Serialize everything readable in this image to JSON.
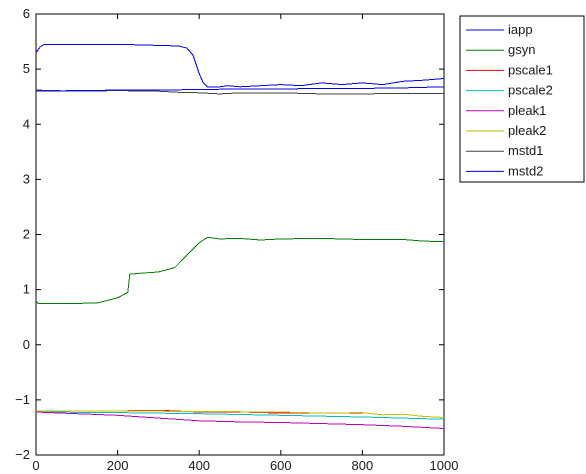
{
  "chart_data": {
    "type": "line",
    "title": "",
    "xlabel": "",
    "ylabel": "",
    "xlim": [
      0,
      1000
    ],
    "ylim": [
      -2,
      6
    ],
    "xticks": [
      0,
      200,
      400,
      600,
      800,
      1000
    ],
    "yticks": [
      -2,
      -1,
      0,
      1,
      2,
      3,
      4,
      5,
      6
    ],
    "xtick_labels": [
      "0",
      "200",
      "400",
      "600",
      "800",
      "1000"
    ],
    "ytick_labels": [
      "−2",
      "−1",
      "0",
      "1",
      "2",
      "3",
      "4",
      "5",
      "6"
    ],
    "grid": false,
    "legend_position": "top-right",
    "series": [
      {
        "name": "iapp",
        "color": "#0000ff",
        "x": [
          0,
          10,
          20,
          100,
          200,
          300,
          350,
          370,
          385,
          392,
          400,
          410,
          420,
          450,
          470,
          500,
          550,
          600,
          650,
          700,
          750,
          800,
          850,
          900,
          950,
          1000
        ],
        "y": [
          5.3,
          5.4,
          5.45,
          5.45,
          5.45,
          5.43,
          5.42,
          5.38,
          5.25,
          5.1,
          4.92,
          4.75,
          4.68,
          4.68,
          4.7,
          4.68,
          4.7,
          4.72,
          4.7,
          4.75,
          4.72,
          4.75,
          4.72,
          4.78,
          4.8,
          4.83
        ]
      },
      {
        "name": "gsyn",
        "color": "#008000",
        "x": [
          0,
          5,
          10,
          100,
          150,
          200,
          225,
          230,
          260,
          300,
          340,
          360,
          380,
          400,
          420,
          450,
          500,
          550,
          600,
          700,
          800,
          900,
          950,
          1000
        ],
        "y": [
          0.8,
          0.75,
          0.75,
          0.75,
          0.76,
          0.85,
          0.95,
          1.28,
          1.3,
          1.32,
          1.4,
          1.55,
          1.7,
          1.85,
          1.95,
          1.92,
          1.93,
          1.9,
          1.92,
          1.93,
          1.91,
          1.91,
          1.88,
          1.87
        ]
      },
      {
        "name": "pscale1",
        "color": "#ff0000",
        "x": [
          0,
          100,
          200,
          300,
          400,
          500,
          600,
          700,
          800
        ],
        "y": [
          -1.2,
          -1.2,
          -1.2,
          -1.19,
          -1.22,
          -1.22,
          -1.24,
          -1.24,
          -1.24
        ]
      },
      {
        "name": "pscale2",
        "color": "#00bfbf",
        "x": [
          0,
          200,
          400,
          600,
          800,
          1000
        ],
        "y": [
          -1.22,
          -1.23,
          -1.25,
          -1.28,
          -1.31,
          -1.35
        ]
      },
      {
        "name": "pleak1",
        "color": "#bf00bf",
        "x": [
          0,
          100,
          200,
          300,
          400,
          500,
          600,
          700,
          800,
          900,
          1000
        ],
        "y": [
          -1.22,
          -1.25,
          -1.28,
          -1.33,
          -1.38,
          -1.4,
          -1.41,
          -1.43,
          -1.45,
          -1.48,
          -1.52
        ]
      },
      {
        "name": "pleak2",
        "color": "#bfbf00",
        "x": [
          0,
          200,
          400,
          600,
          700,
          800,
          850,
          900,
          950,
          1000
        ],
        "y": [
          -1.2,
          -1.2,
          -1.21,
          -1.22,
          -1.24,
          -1.23,
          -1.27,
          -1.26,
          -1.3,
          -1.32
        ]
      },
      {
        "name": "mstd1",
        "color": "#404040",
        "x": [
          0,
          100,
          200,
          300,
          350,
          400,
          450,
          500,
          600,
          700,
          800,
          900,
          1000
        ],
        "y": [
          4.62,
          4.6,
          4.61,
          4.6,
          4.58,
          4.57,
          4.55,
          4.57,
          4.57,
          4.55,
          4.55,
          4.56,
          4.56
        ]
      },
      {
        "name": "mstd2",
        "color": "#0000ff",
        "x": [
          0,
          100,
          200,
          300,
          400,
          500,
          600,
          700,
          800,
          900,
          1000
        ],
        "y": [
          4.6,
          4.61,
          4.62,
          4.62,
          4.63,
          4.64,
          4.64,
          4.65,
          4.65,
          4.66,
          4.68
        ]
      }
    ]
  }
}
